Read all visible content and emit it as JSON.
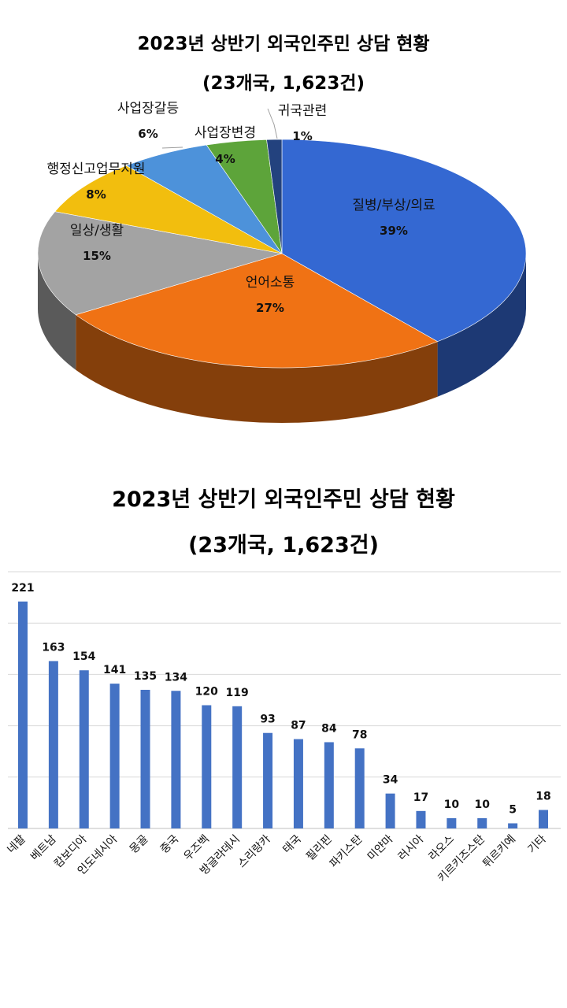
{
  "chart_data": [
    {
      "type": "pie",
      "title": "2023년 상반기 외국인주민 상담 현황",
      "subtitle": "(23개국, 1,623건)",
      "slices": [
        {
          "label": "질병/부상/의료",
          "value": 39,
          "display": "39%",
          "color": "#3468d2"
        },
        {
          "label": "언어소통",
          "value": 27,
          "display": "27%",
          "color": "#f07214"
        },
        {
          "label": "일상/생활",
          "value": 15,
          "display": "15%",
          "color": "#a3a3a3"
        },
        {
          "label": "행정신고업무지원",
          "value": 8,
          "display": "8%",
          "color": "#f2be0e"
        },
        {
          "label": "사업장갈등",
          "value": 6,
          "display": "6%",
          "color": "#4d92da"
        },
        {
          "label": "사업장변경",
          "value": 4,
          "display": "4%",
          "color": "#5da43a"
        },
        {
          "label": "귀국관련",
          "value": 1,
          "display": "1%",
          "color": "#23427e"
        }
      ]
    },
    {
      "type": "bar",
      "title": "2023년 상반기 외국인주민 상담 현황",
      "subtitle": "(23개국, 1,623건)",
      "categories": [
        "네팔",
        "베트남",
        "캄보디아",
        "인도네시아",
        "몽골",
        "중국",
        "우즈벡",
        "방글라데시",
        "스리랑카",
        "태국",
        "필리핀",
        "파키스탄",
        "미얀마",
        "러시아",
        "라오스",
        "키르키즈스탄",
        "튀르키예",
        "기타"
      ],
      "values": [
        221,
        163,
        154,
        141,
        135,
        134,
        120,
        119,
        93,
        87,
        84,
        78,
        34,
        17,
        10,
        10,
        5,
        18
      ],
      "ylim": [
        0,
        250
      ],
      "bar_color": "#4472c4",
      "grid": true
    }
  ]
}
